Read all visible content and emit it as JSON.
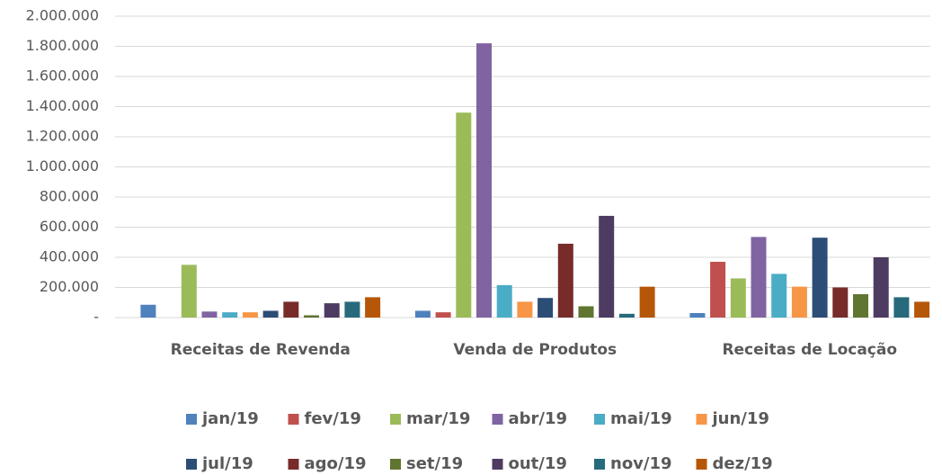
{
  "chart_data": {
    "type": "bar",
    "categories": [
      "Receitas de Revenda",
      "Venda de Produtos",
      "Receitas de Locação"
    ],
    "series": [
      {
        "name": "jan/19",
        "color": "#4F81BD",
        "values": [
          85000,
          45000,
          30000
        ]
      },
      {
        "name": "fev/19",
        "color": "#C0504D",
        "values": [
          0,
          35000,
          370000
        ]
      },
      {
        "name": "mar/19",
        "color": "#9BBB59",
        "values": [
          350000,
          1360000,
          260000
        ]
      },
      {
        "name": "abr/19",
        "color": "#8064A2",
        "values": [
          40000,
          1820000,
          535000
        ]
      },
      {
        "name": "mai/19",
        "color": "#4BACC6",
        "values": [
          35000,
          215000,
          290000
        ]
      },
      {
        "name": "jun/19",
        "color": "#F79646",
        "values": [
          35000,
          105000,
          205000
        ]
      },
      {
        "name": "jul/19",
        "color": "#2C4D75",
        "values": [
          45000,
          130000,
          530000
        ]
      },
      {
        "name": "ago/19",
        "color": "#772C2A",
        "values": [
          105000,
          490000,
          200000
        ]
      },
      {
        "name": "set/19",
        "color": "#5F7530",
        "values": [
          15000,
          75000,
          155000
        ]
      },
      {
        "name": "out/19",
        "color": "#4D3B62",
        "values": [
          95000,
          675000,
          400000
        ]
      },
      {
        "name": "nov/19",
        "color": "#276A7C",
        "values": [
          105000,
          25000,
          135000
        ]
      },
      {
        "name": "dez/19",
        "color": "#B65708",
        "values": [
          135000,
          205000,
          105000
        ]
      }
    ],
    "ylim": [
      0,
      2000000
    ],
    "yticks": [
      {
        "value": 0,
        "label": "-"
      },
      {
        "value": 200000,
        "label": "200.000"
      },
      {
        "value": 400000,
        "label": "400.000"
      },
      {
        "value": 600000,
        "label": "600.000"
      },
      {
        "value": 800000,
        "label": "800.000"
      },
      {
        "value": 1000000,
        "label": "1.000.000"
      },
      {
        "value": 1200000,
        "label": "1.200.000"
      },
      {
        "value": 1400000,
        "label": "1.400.000"
      },
      {
        "value": 1600000,
        "label": "1.600.000"
      },
      {
        "value": 1800000,
        "label": "1.800.000"
      },
      {
        "value": 2000000,
        "label": "2.000.000"
      }
    ],
    "grid": true,
    "legend": "bottom"
  }
}
